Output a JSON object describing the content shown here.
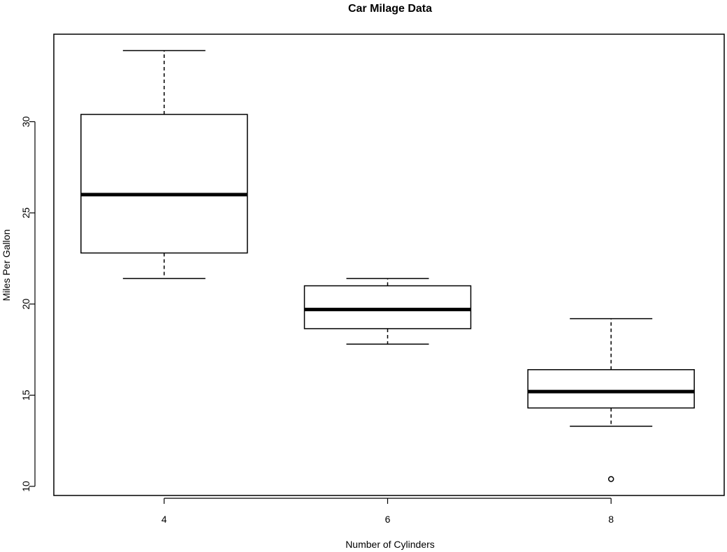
{
  "chart_data": {
    "type": "boxplot",
    "title": "Car Milage Data",
    "xlabel": "Number of Cylinders",
    "ylabel": "Miles Per Gallon",
    "categories": [
      "4",
      "6",
      "8"
    ],
    "ylim": [
      9.5,
      34.8
    ],
    "yticks": [
      10,
      15,
      20,
      25,
      30
    ],
    "grid": false,
    "boxes": [
      {
        "category": "4",
        "whisker_low": 21.4,
        "q1": 22.8,
        "median": 26.0,
        "q3": 30.4,
        "whisker_high": 33.9,
        "outliers": []
      },
      {
        "category": "6",
        "whisker_low": 17.8,
        "q1": 18.65,
        "median": 19.7,
        "q3": 21.0,
        "whisker_high": 21.4,
        "outliers": []
      },
      {
        "category": "8",
        "whisker_low": 13.3,
        "q1": 14.3,
        "median": 15.2,
        "q3": 16.4,
        "whisker_high": 19.2,
        "outliers": [
          10.4
        ]
      }
    ],
    "colors": {
      "box_fill": "#ffffff",
      "stroke": "#000000"
    }
  }
}
